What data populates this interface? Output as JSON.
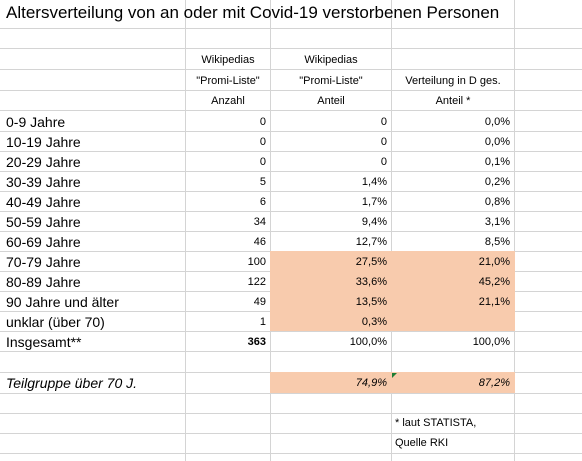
{
  "title": "Altersverteilung von an oder mit Covid-19 verstorbenen Personen",
  "header": {
    "col_b": [
      "Wikipedias",
      "\"Promi-Liste\"",
      "Anzahl"
    ],
    "col_c": [
      "Wikipedias",
      "\"Promi-Liste\"",
      "Anteil"
    ],
    "col_d": [
      "",
      "Verteilung in D ges.",
      "Anteil *"
    ]
  },
  "rows": [
    {
      "label": "0-9 Jahre",
      "count": "0",
      "share": "0",
      "germany": "0,0%"
    },
    {
      "label": "10-19 Jahre",
      "count": "0",
      "share": "0",
      "germany": "0,0%"
    },
    {
      "label": "20-29 Jahre",
      "count": "0",
      "share": "0",
      "germany": "0,1%"
    },
    {
      "label": "30-39 Jahre",
      "count": "5",
      "share": "1,4%",
      "germany": "0,2%"
    },
    {
      "label": "40-49 Jahre",
      "count": "6",
      "share": "1,7%",
      "germany": "0,8%"
    },
    {
      "label": "50-59 Jahre",
      "count": "34",
      "share": "9,4%",
      "germany": "3,1%"
    },
    {
      "label": "60-69 Jahre",
      "count": "46",
      "share": "12,7%",
      "germany": "8,5%"
    },
    {
      "label": "70-79 Jahre",
      "count": "100",
      "share": "27,5%",
      "germany": "21,0%"
    },
    {
      "label": "80-89 Jahre",
      "count": "122",
      "share": "33,6%",
      "germany": "45,2%"
    },
    {
      "label": "90 Jahre und älter",
      "count": "49",
      "share": "13,5%",
      "germany": "21,1%"
    },
    {
      "label": "unklar (über 70)",
      "count": "1",
      "share": "0,3%",
      "germany": ""
    }
  ],
  "total": {
    "label": "Insgesamt**",
    "count": "363",
    "share": "100,0%",
    "germany": "100,0%"
  },
  "subgroup": {
    "label": "Teilgruppe über 70 J.",
    "share": "74,9%",
    "germany": "87,2%"
  },
  "footnote": [
    "* laut STATISTA,",
    "Quelle RKI"
  ],
  "colors": {
    "highlight": "#f8cbad",
    "gridline": "#d4d4d4",
    "comment_marker": "#1e7e34"
  }
}
